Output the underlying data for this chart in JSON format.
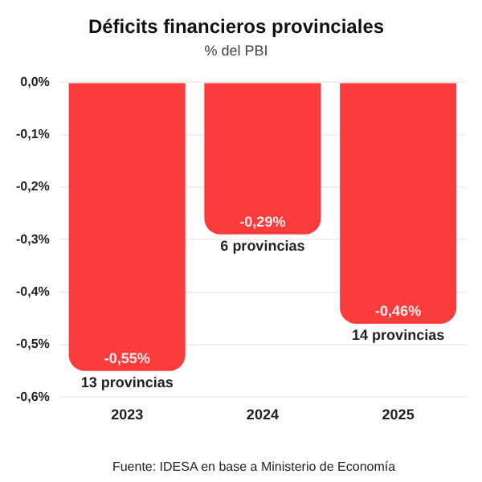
{
  "chart_data": {
    "type": "bar",
    "title": "Déficits financieros provinciales",
    "subtitle": "% del PBI",
    "categories": [
      "2023",
      "2024",
      "2025"
    ],
    "values": [
      -0.55,
      -0.29,
      -0.46
    ],
    "color": "#fb3c3c",
    "value_labels": [
      "-0,55%",
      "-0,29%",
      "-0,46%"
    ],
    "ylim": [
      -0.6,
      0
    ],
    "yticks": [
      {
        "value": 0,
        "label": "0,0%"
      },
      {
        "value": -0.1,
        "label": "-0,1%"
      },
      {
        "value": -0.2,
        "label": "-0,2%"
      },
      {
        "value": -0.3,
        "label": "-0,3%"
      },
      {
        "value": -0.4,
        "label": "-0,4%"
      },
      {
        "value": -0.5,
        "label": "-0,5%"
      },
      {
        "value": -0.6,
        "label": "-0,6%"
      }
    ],
    "grid": "y",
    "legend": false,
    "annotations": [
      {
        "text": "13 provincias",
        "x": "2023",
        "y": -0.55
      },
      {
        "text": "6 provincias",
        "x": "2024",
        "y": -0.29
      },
      {
        "text": "14 provincias",
        "x": "2025",
        "y": -0.46
      },
      "Fuente: IDESA en base a Ministerio de Economía"
    ]
  }
}
